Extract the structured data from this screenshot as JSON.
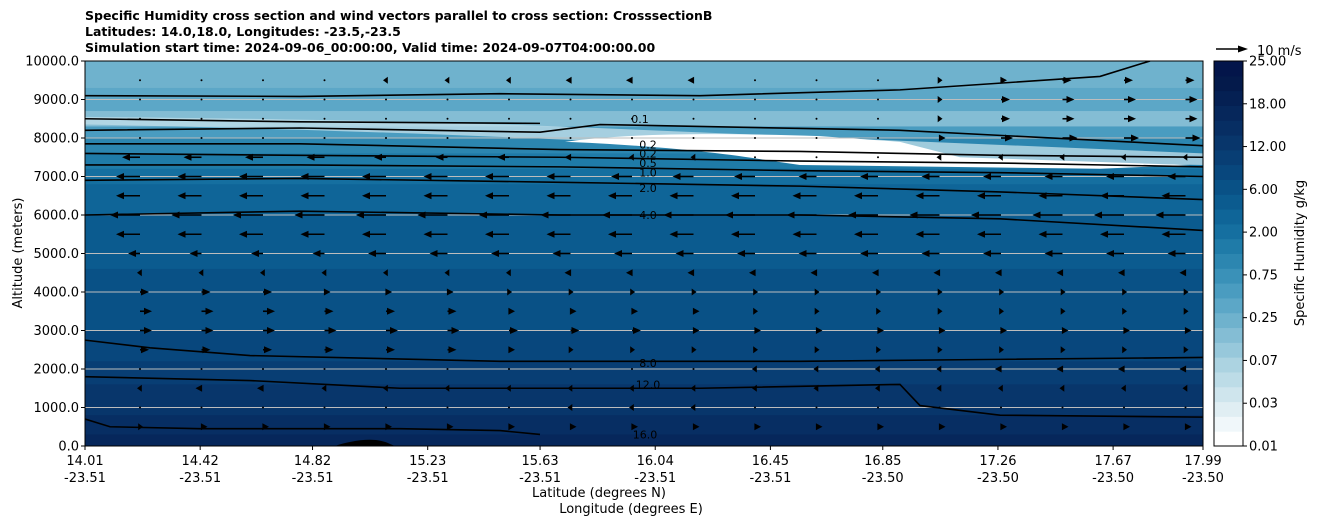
{
  "title": {
    "line1": "Specific Humidity cross section and wind vectors parallel to cross section: CrosssectionB",
    "line2": "Latitudes: 14.0,18.0, Longitudes: -23.5,-23.5",
    "line3": "Simulation start time: 2024-09-06_00:00:00, Valid time: 2024-09-07T04:00:00.00"
  },
  "chart_data": {
    "type": "contourf",
    "title": "Specific Humidity cross section and wind vectors parallel to cross section: CrosssectionB",
    "ylabel": "Altitude (meters)",
    "xlabel_lat": "Latitude (degrees N)",
    "xlabel_lon": "Longitude (degrees E)",
    "ylim": [
      0,
      10000
    ],
    "yticks": [
      "0.0",
      "1000.0",
      "2000.0",
      "3000.0",
      "4000.0",
      "5000.0",
      "6000.0",
      "7000.0",
      "8000.0",
      "9000.0",
      "10000.0"
    ],
    "xlim": [
      14.01,
      17.99
    ],
    "xticks": [
      {
        "lat": "14.01",
        "lon": "-23.51"
      },
      {
        "lat": "14.42",
        "lon": "-23.51"
      },
      {
        "lat": "14.82",
        "lon": "-23.51"
      },
      {
        "lat": "15.23",
        "lon": "-23.51"
      },
      {
        "lat": "15.63",
        "lon": "-23.51"
      },
      {
        "lat": "16.04",
        "lon": "-23.51"
      },
      {
        "lat": "16.45",
        "lon": "-23.51"
      },
      {
        "lat": "16.85",
        "lon": "-23.50"
      },
      {
        "lat": "17.26",
        "lon": "-23.50"
      },
      {
        "lat": "17.67",
        "lon": "-23.50"
      },
      {
        "lat": "17.99",
        "lon": "-23.50"
      }
    ],
    "grid": "horizontal",
    "colorbar": {
      "label": "Specific Humidity g/kg",
      "ticks": [
        "0.01",
        "0.03",
        "0.07",
        "0.25",
        "0.75",
        "2.00",
        "6.00",
        "12.00",
        "18.00",
        "25.00"
      ],
      "colors": [
        "#ffffff",
        "#f0f7fa",
        "#e0eef3",
        "#cfe5ed",
        "#bddce7",
        "#acd3e1",
        "#97c8db",
        "#84bdd4",
        "#6fb2cd",
        "#5ca7c7",
        "#4a9cc0",
        "#3a91b8",
        "#2c86b0",
        "#1f7ba8",
        "#156fa0",
        "#0f6598",
        "#0b5b8f",
        "#095186",
        "#08477d",
        "#083e74",
        "#08366b",
        "#072e63",
        "#06275b",
        "#052053",
        "#041a4b",
        "#03154a"
      ]
    },
    "contour_levels": [
      {
        "value": "0.1",
        "altitude_m": 8600
      },
      {
        "value": "0.2",
        "altitude_m": 7900
      },
      {
        "value": "0.5",
        "altitude_m": 7600
      },
      {
        "value": "1.0",
        "altitude_m": 7300
      },
      {
        "value": "2.0",
        "altitude_m": 6900
      },
      {
        "value": "4.0",
        "altitude_m": 6000
      },
      {
        "value": "8.0",
        "altitude_m": 2150
      },
      {
        "value": "12.0",
        "altitude_m": 1600
      },
      {
        "value": "16.0",
        "altitude_m": 500
      }
    ],
    "quiver_key": {
      "label": "10 m/s",
      "value": 10
    },
    "wind_rows": [
      {
        "alt": 9500,
        "u": [
          0,
          0,
          0,
          0,
          -0.5,
          -0.5,
          -0.5,
          -0.8,
          -1,
          -1,
          0,
          0,
          0,
          0.5,
          1,
          1.5,
          1.5,
          1.5
        ]
      },
      {
        "alt": 9000,
        "u": [
          0,
          0,
          0,
          0,
          0,
          0,
          0,
          0,
          0,
          0,
          0,
          0,
          0,
          0.5,
          1.5,
          2,
          2,
          2
        ]
      },
      {
        "alt": 8500,
        "u": [
          0,
          0,
          0,
          0,
          0,
          0,
          0,
          0,
          0,
          0,
          0,
          0,
          0,
          0.5,
          1.5,
          2,
          2,
          2
        ]
      },
      {
        "alt": 8000,
        "u": [
          0,
          0,
          0,
          0,
          0,
          0,
          0,
          0,
          0,
          0,
          0,
          0,
          0,
          1,
          2,
          2.5,
          2.5,
          2.5
        ]
      },
      {
        "alt": 7500,
        "u": [
          -3,
          -3,
          -3,
          -3,
          -2,
          -2,
          -2,
          -1,
          -0.5,
          -0.5,
          0,
          0,
          0,
          -0.5,
          -0.5,
          -0.5,
          -0.5,
          -0.5
        ]
      },
      {
        "alt": 7000,
        "u": [
          -4,
          -4,
          -4,
          -4,
          -4,
          -4,
          -4,
          -4,
          -3.5,
          -3.5,
          -3.5,
          -3,
          -3,
          -3,
          -3,
          -3,
          -3,
          -3
        ]
      },
      {
        "alt": 6500,
        "u": [
          -4,
          -4,
          -4,
          -4,
          -4,
          -4,
          -4,
          -4,
          -4,
          -4,
          -4,
          -4,
          -4,
          -4,
          -4,
          -4,
          -4,
          -4
        ]
      },
      {
        "alt": 6000,
        "u": [
          -5,
          -5,
          -5,
          -5,
          -5,
          -5,
          -5,
          -5,
          -5,
          -5,
          -5,
          -5,
          -5,
          -5,
          -5,
          -5,
          -5,
          -5
        ]
      },
      {
        "alt": 5500,
        "u": [
          -4,
          -4,
          -4,
          -4,
          -4,
          -4,
          -4,
          -4,
          -4,
          -4,
          -4,
          -4,
          -4,
          -4,
          -4,
          -4,
          -4,
          -4
        ]
      },
      {
        "alt": 5000,
        "u": [
          -2,
          -2,
          -2,
          -2,
          -3,
          -3,
          -3,
          -3,
          -3,
          -3,
          -3,
          -3,
          -3,
          -3,
          -3,
          -3,
          -3,
          -3
        ]
      },
      {
        "alt": 4500,
        "u": [
          -0.5,
          -0.5,
          -0.5,
          -0.5,
          -0.5,
          -0.5,
          -0.5,
          -1,
          -1,
          -1,
          -1,
          -1,
          -1,
          -1,
          -1,
          -1,
          -1,
          -1
        ]
      },
      {
        "alt": 4000,
        "u": [
          1.5,
          1.5,
          1.5,
          1,
          1,
          1,
          0.5,
          0.5,
          0.5,
          0.5,
          0.5,
          0.5,
          0.5,
          0.5,
          0.5,
          0.5,
          0.5,
          0.5
        ]
      },
      {
        "alt": 3500,
        "u": [
          2,
          2,
          2,
          1.5,
          1.5,
          1.5,
          1,
          1,
          1,
          1,
          0.5,
          0.5,
          0.5,
          0.5,
          0.5,
          0.5,
          0.5,
          0.5
        ]
      },
      {
        "alt": 3000,
        "u": [
          2,
          2,
          2,
          2,
          2,
          2,
          1.5,
          1.5,
          1.5,
          1,
          1,
          1,
          1,
          1,
          1,
          1,
          1,
          1
        ]
      },
      {
        "alt": 2500,
        "u": [
          1.5,
          1.5,
          1.5,
          1.5,
          1.5,
          1.5,
          1,
          0.5,
          0.5,
          0.5,
          0.5,
          0.5,
          0.5,
          0.5,
          0.5,
          0.5,
          0.5,
          0.5
        ]
      },
      {
        "alt": 2000,
        "u": [
          0,
          0,
          0,
          0,
          0,
          0,
          0,
          0,
          0,
          0,
          -0.5,
          -0.5,
          -0.5,
          -0.5,
          -1,
          -1,
          -1,
          -1
        ]
      },
      {
        "alt": 1500,
        "u": [
          -0.5,
          -1,
          -1,
          -0.5,
          -0.5,
          -0.5,
          -0.5,
          -0.5,
          -0.5,
          -0.5,
          -0.5,
          -0.5,
          -0.5,
          -0.5,
          -0.5,
          -0.5,
          -0.5,
          -0.5
        ]
      },
      {
        "alt": 1000,
        "u": [
          0,
          0,
          0,
          0,
          0,
          0,
          0,
          -0.5,
          -0.5,
          -0.5,
          0,
          0,
          0,
          0,
          0,
          0,
          0,
          0
        ]
      },
      {
        "alt": 500,
        "u": [
          0.5,
          1,
          1,
          1,
          1,
          1,
          1,
          1,
          1,
          1,
          1,
          1,
          1,
          1,
          1,
          1,
          1,
          1
        ]
      }
    ]
  }
}
